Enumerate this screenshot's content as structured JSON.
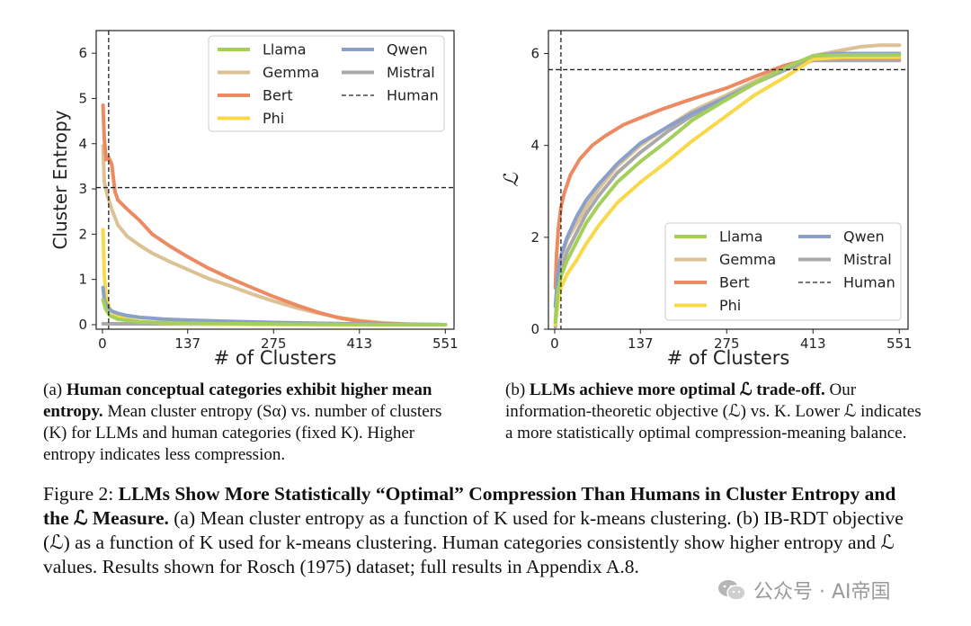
{
  "chart_data": [
    {
      "type": "line",
      "panel": "a",
      "xlabel": "# of Clusters",
      "ylabel": "Cluster Entropy",
      "xlim": [
        -10,
        565
      ],
      "ylim": [
        -0.1,
        6.5
      ],
      "xticks": [
        0,
        137,
        275,
        413,
        551
      ],
      "yticks": [
        0,
        1,
        2,
        3,
        4,
        5,
        6
      ],
      "legend_position": "top-right",
      "human_vline_x": 10,
      "human_hline_y": 3.03,
      "series": [
        {
          "name": "Llama",
          "color": "#a2d05a",
          "x": [
            1,
            5,
            12,
            25,
            60,
            137,
            275,
            413,
            551
          ],
          "y": [
            0.55,
            0.35,
            0.2,
            0.12,
            0.06,
            0.03,
            0.015,
            0.006,
            0.0
          ]
        },
        {
          "name": "Gemma",
          "color": "#dcc195",
          "x": [
            1,
            3,
            8,
            15,
            25,
            40,
            60,
            80,
            110,
            137,
            170,
            206,
            240,
            275,
            310,
            345,
            380,
            413,
            450,
            490,
            520,
            551
          ],
          "y": [
            3.95,
            3.15,
            2.85,
            2.55,
            2.2,
            1.95,
            1.75,
            1.58,
            1.38,
            1.22,
            1.02,
            0.85,
            0.68,
            0.52,
            0.38,
            0.26,
            0.16,
            0.09,
            0.04,
            0.015,
            0.005,
            0.0
          ]
        },
        {
          "name": "Bert",
          "color": "#ec8a62",
          "x": [
            1,
            3,
            6,
            10,
            15,
            20,
            25,
            40,
            60,
            80,
            110,
            137,
            170,
            206,
            240,
            275,
            310,
            345,
            380,
            413,
            450,
            490,
            520,
            551
          ],
          "y": [
            4.85,
            4.1,
            3.65,
            3.7,
            3.55,
            2.95,
            2.75,
            2.55,
            2.3,
            2.0,
            1.72,
            1.5,
            1.25,
            1.02,
            0.82,
            0.62,
            0.44,
            0.28,
            0.15,
            0.07,
            0.03,
            0.01,
            0.003,
            0.0
          ]
        },
        {
          "name": "Phi",
          "color": "#f9d94a",
          "x": [
            1,
            3,
            6,
            12,
            20,
            35,
            60,
            100,
            137,
            200,
            275,
            413,
            551
          ],
          "y": [
            2.1,
            1.1,
            0.6,
            0.35,
            0.22,
            0.13,
            0.07,
            0.035,
            0.02,
            0.01,
            0.005,
            0.002,
            0.0
          ]
        },
        {
          "name": "Qwen",
          "color": "#8b9fcb",
          "x": [
            1,
            3,
            8,
            15,
            25,
            40,
            60,
            100,
            137,
            200,
            275,
            345,
            413,
            480,
            551
          ],
          "y": [
            0.82,
            0.55,
            0.38,
            0.3,
            0.25,
            0.2,
            0.16,
            0.12,
            0.1,
            0.075,
            0.05,
            0.032,
            0.018,
            0.008,
            0.0
          ]
        },
        {
          "name": "Mistral",
          "color": "#a9a9a9",
          "x": [
            1,
            551
          ],
          "y": [
            0.02,
            0.0
          ]
        },
        {
          "name": "Human",
          "color": "#222222",
          "dashed": true
        }
      ]
    },
    {
      "type": "line",
      "panel": "b",
      "xlabel": "# of Clusters",
      "ylabel": "ℒ",
      "xlim": [
        -10,
        565
      ],
      "ylim": [
        0,
        6.5
      ],
      "xticks": [
        0,
        137,
        275,
        413,
        551
      ],
      "yticks": [
        0,
        2,
        4,
        6
      ],
      "legend_position": "bottom-right",
      "human_vline_x": 10,
      "human_hline_y": 5.65,
      "series": [
        {
          "name": "Llama",
          "color": "#a2d05a",
          "x": [
            1,
            5,
            10,
            20,
            35,
            50,
            70,
            100,
            137,
            180,
            220,
            275,
            320,
            370,
            413,
            460,
            500,
            551
          ],
          "y": [
            0.15,
            0.8,
            1.15,
            1.5,
            1.9,
            2.3,
            2.7,
            3.2,
            3.65,
            4.1,
            4.55,
            5.0,
            5.35,
            5.7,
            5.95,
            5.97,
            5.97,
            5.97
          ]
        },
        {
          "name": "Gemma",
          "color": "#dcc195",
          "x": [
            1,
            5,
            10,
            20,
            35,
            50,
            70,
            100,
            137,
            180,
            220,
            275,
            320,
            370,
            413,
            450,
            490,
            520,
            551
          ],
          "y": [
            0.2,
            1.0,
            1.55,
            1.95,
            2.3,
            2.65,
            3.05,
            3.55,
            4.0,
            4.4,
            4.75,
            5.1,
            5.4,
            5.7,
            5.95,
            6.05,
            6.15,
            6.18,
            6.18
          ]
        },
        {
          "name": "Bert",
          "color": "#ec8a62",
          "x": [
            1,
            3,
            6,
            10,
            15,
            25,
            40,
            60,
            80,
            110,
            137,
            170,
            206,
            240,
            275,
            320,
            370,
            413,
            450,
            490,
            520,
            551
          ],
          "y": [
            0.9,
            1.6,
            2.2,
            2.65,
            2.95,
            3.35,
            3.7,
            4.0,
            4.2,
            4.45,
            4.6,
            4.78,
            4.95,
            5.1,
            5.25,
            5.5,
            5.75,
            5.9,
            5.9,
            5.9,
            5.9,
            5.9
          ]
        },
        {
          "name": "Phi",
          "color": "#f9d94a",
          "x": [
            1,
            5,
            10,
            20,
            35,
            50,
            70,
            100,
            137,
            180,
            220,
            275,
            320,
            370,
            413,
            460,
            500,
            551
          ],
          "y": [
            0.1,
            0.55,
            0.9,
            1.2,
            1.5,
            1.85,
            2.25,
            2.75,
            3.2,
            3.65,
            4.1,
            4.65,
            5.1,
            5.5,
            5.88,
            5.92,
            5.92,
            5.92
          ]
        },
        {
          "name": "Qwen",
          "color": "#8b9fcb",
          "x": [
            1,
            5,
            10,
            20,
            35,
            50,
            70,
            100,
            137,
            180,
            220,
            275,
            320,
            370,
            413,
            450,
            500,
            551
          ],
          "y": [
            0.5,
            1.2,
            1.6,
            2.0,
            2.45,
            2.8,
            3.15,
            3.6,
            4.05,
            4.4,
            4.7,
            5.05,
            5.35,
            5.7,
            5.95,
            6.0,
            6.0,
            6.0
          ]
        },
        {
          "name": "Mistral",
          "color": "#a9a9a9",
          "x": [
            1,
            5,
            10,
            20,
            35,
            50,
            70,
            100,
            137,
            180,
            220,
            275,
            320,
            370,
            413,
            460,
            500,
            551
          ],
          "y": [
            0.05,
            0.9,
            1.3,
            1.7,
            2.1,
            2.5,
            2.9,
            3.4,
            3.85,
            4.3,
            4.65,
            5.0,
            5.35,
            5.65,
            5.85,
            5.85,
            5.85,
            5.85
          ]
        },
        {
          "name": "Human",
          "color": "#222222",
          "dashed": true
        }
      ]
    }
  ],
  "captions": {
    "a_label": "(a)",
    "a_bold": "Human conceptual categories exhibit higher mean entropy.",
    "a_text": "Mean cluster entropy (Sα) vs. number of clusters (K) for LLMs and human categories (fixed K). Higher entropy indicates less compression.",
    "b_label": "(b)",
    "b_bold": "LLMs achieve more optimal ℒ trade-off.",
    "b_text": "Our information-theoretic objective (ℒ) vs. K. Lower ℒ indicates a more statistically optimal compression-meaning balance.",
    "figure_label": "Figure 2:",
    "figure_bold": "LLMs Show More Statistically “Optimal” Compression Than Humans in Cluster Entropy and the ℒ Measure.",
    "figure_text": "(a) Mean cluster entropy as a function of K used for k-means clustering. (b) IB-RDT objective (ℒ) as a function of K used for k-means clustering. Human categories consistently show higher entropy and ℒ values. Results shown for Rosch (1975) dataset; full results in Appendix A.8."
  },
  "watermark": {
    "text": "公众号 · AI帝国",
    "icon": "wechat-icon"
  }
}
